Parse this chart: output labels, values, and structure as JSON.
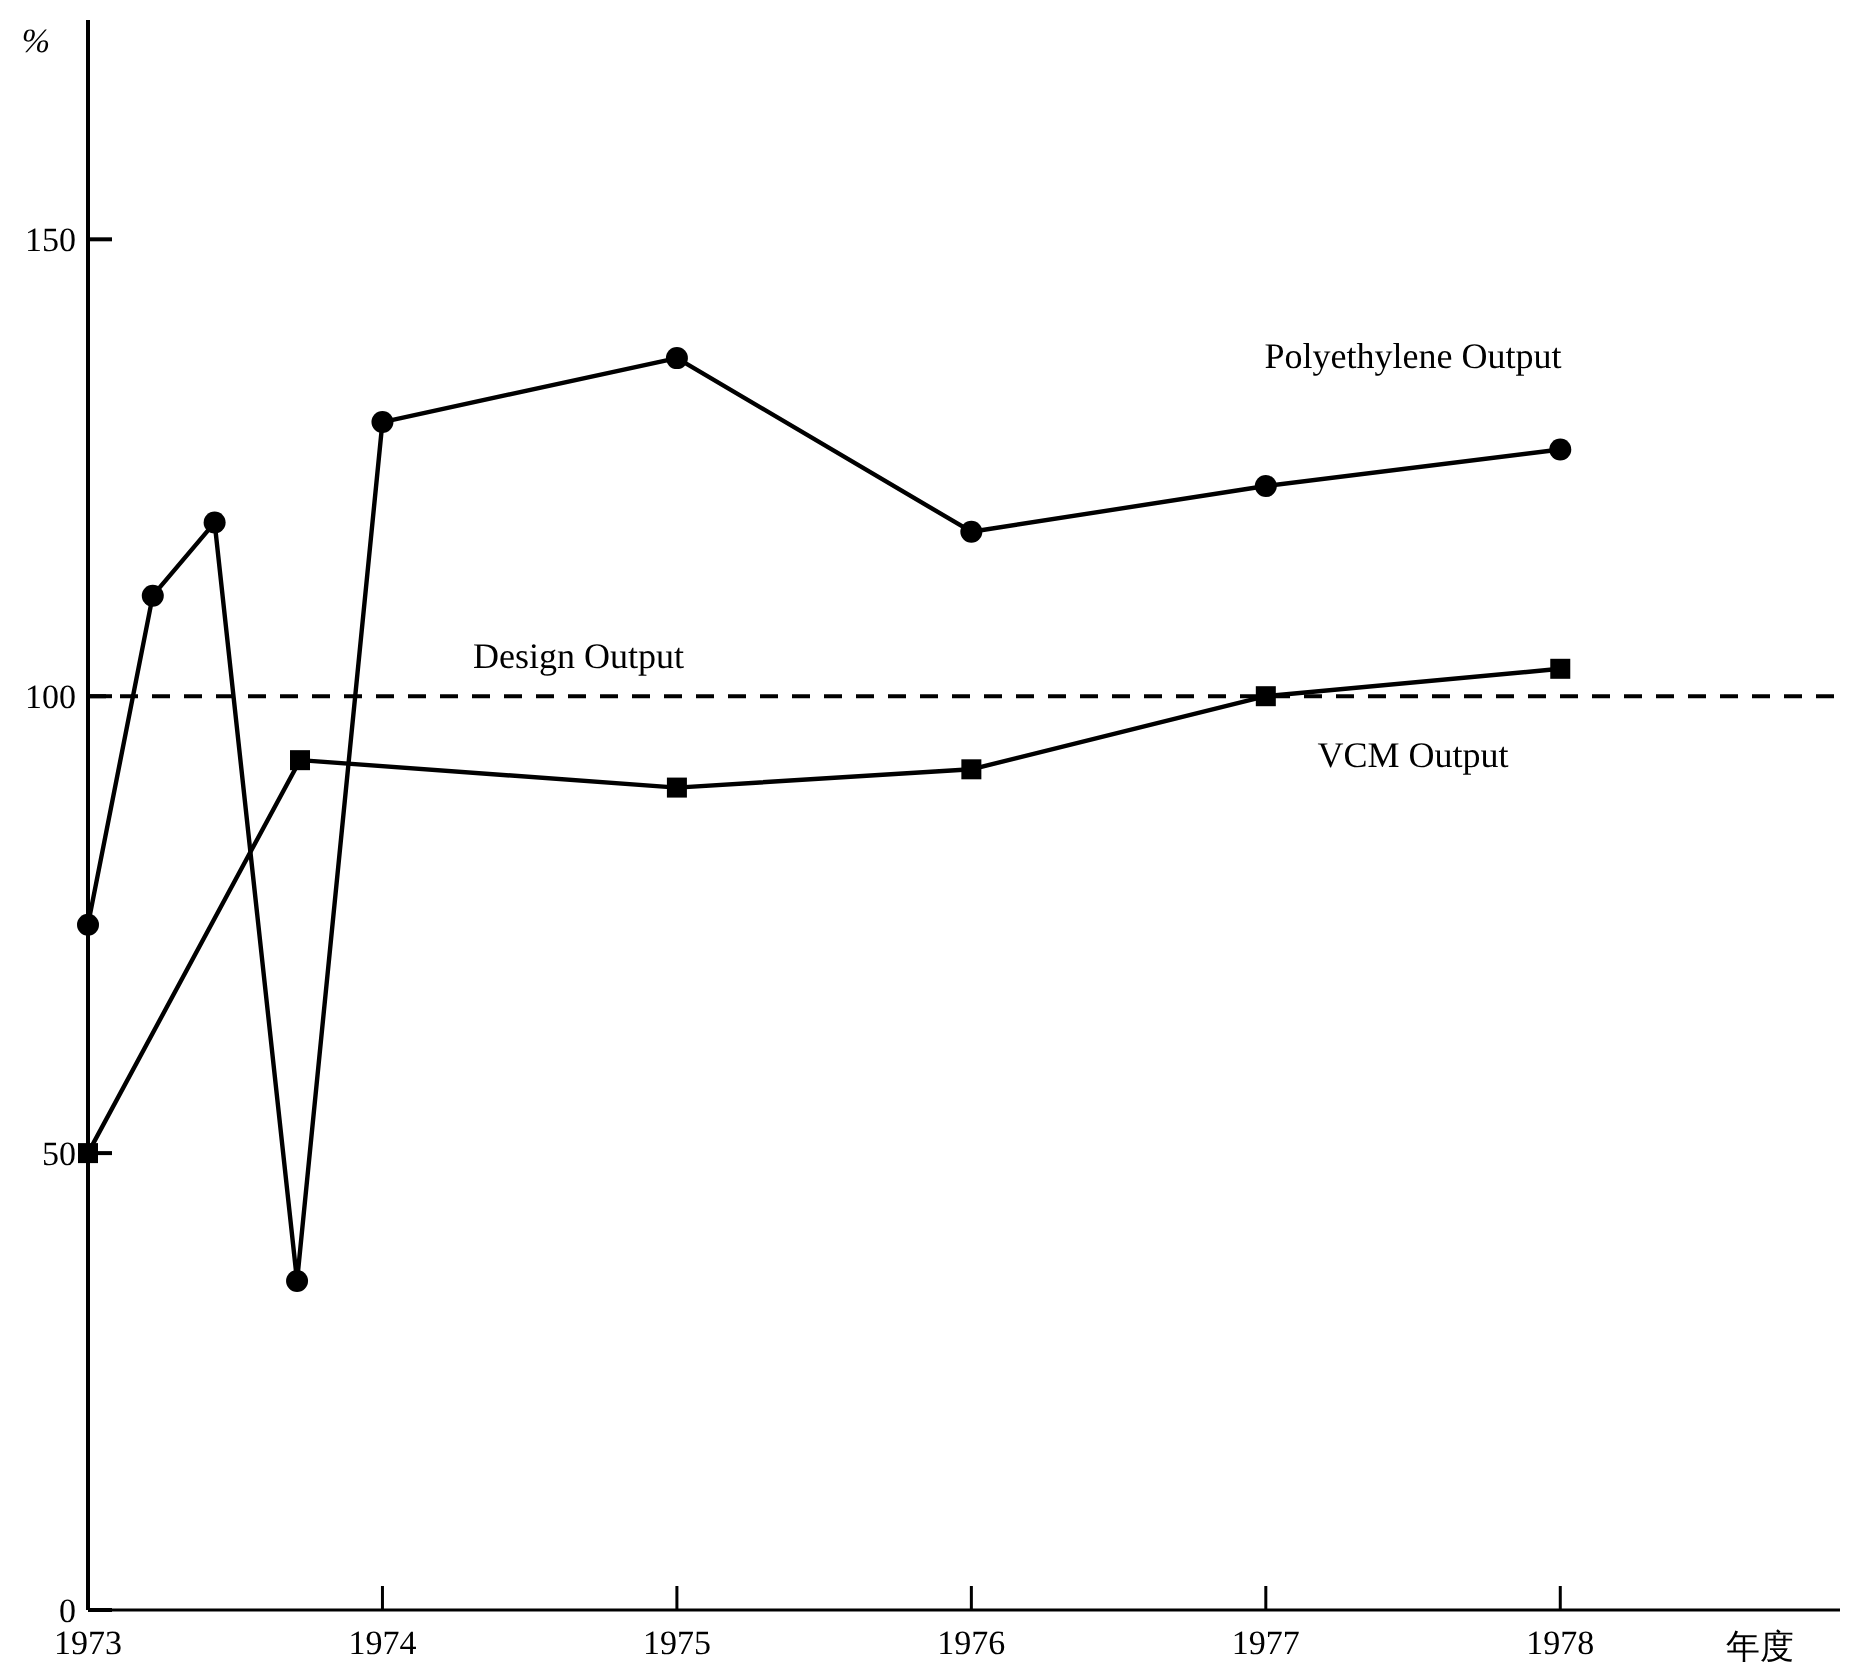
{
  "chart_data": {
    "type": "line",
    "ylabel": "%",
    "xlabel": "年度",
    "xlim": [
      1973,
      1978.95
    ],
    "ylim": [
      0,
      174
    ],
    "xticks": [
      1973,
      1974,
      1975,
      1976,
      1977,
      1978
    ],
    "yticks": [
      0,
      50,
      100,
      150
    ],
    "grid": false,
    "legend": false,
    "line_style": "solid",
    "series": [
      {
        "name": "Polyethylene Output",
        "color": "#000000",
        "marker": "circle",
        "x": [
          1973,
          1973.22,
          1973.43,
          1973.71,
          1974,
          1975,
          1976,
          1977,
          1978
        ],
        "values": [
          75,
          111,
          119,
          36,
          130,
          137,
          118,
          123,
          127
        ]
      },
      {
        "name": "VCM Output",
        "color": "#000000",
        "marker": "square",
        "x": [
          1973,
          1973.72,
          1975,
          1976,
          1977,
          1978
        ],
        "values": [
          50,
          93,
          90,
          92,
          100,
          103
        ]
      }
    ],
    "ref_lines": [
      {
        "axis": "y",
        "value": 100,
        "label": "Design Output",
        "color": "#000000",
        "line_style": "dashed"
      }
    ]
  }
}
